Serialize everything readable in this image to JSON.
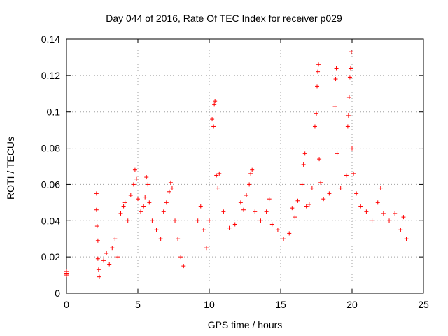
{
  "chart_data": {
    "type": "scatter",
    "title": "Day 044 of 2016, Rate Of TEC Index for receiver p029",
    "xlabel": "GPS time / hours",
    "ylabel": "ROTI / TECUs",
    "xlim": [
      0,
      25
    ],
    "ylim": [
      0,
      0.14
    ],
    "xticks": [
      0,
      5,
      10,
      15,
      20,
      25
    ],
    "yticks": [
      0,
      0.02,
      0.04,
      0.06,
      0.08,
      0.1,
      0.12,
      0.14
    ],
    "ytick_labels": [
      "0",
      "0.02",
      "0.04",
      "0.06",
      "0.08",
      "0.1",
      "0.12",
      "0.14"
    ],
    "grid": true,
    "marker": "+",
    "color": "#ff0000",
    "series": [
      {
        "points": [
          [
            0.0,
            0.01
          ],
          [
            0.0,
            0.011
          ],
          [
            0.0,
            0.012
          ],
          [
            2.1,
            0.055
          ],
          [
            2.1,
            0.046
          ],
          [
            2.15,
            0.037
          ],
          [
            2.2,
            0.029
          ],
          [
            2.2,
            0.019
          ],
          [
            2.25,
            0.013
          ],
          [
            2.3,
            0.009
          ],
          [
            2.6,
            0.018
          ],
          [
            2.8,
            0.022
          ],
          [
            3.0,
            0.016
          ],
          [
            3.2,
            0.025
          ],
          [
            3.4,
            0.03
          ],
          [
            3.6,
            0.02
          ],
          [
            3.8,
            0.044
          ],
          [
            4.0,
            0.048
          ],
          [
            4.1,
            0.05
          ],
          [
            4.3,
            0.04
          ],
          [
            4.5,
            0.054
          ],
          [
            4.7,
            0.06
          ],
          [
            4.8,
            0.068
          ],
          [
            4.9,
            0.063
          ],
          [
            5.0,
            0.052
          ],
          [
            5.2,
            0.045
          ],
          [
            5.4,
            0.048
          ],
          [
            5.5,
            0.053
          ],
          [
            5.6,
            0.064
          ],
          [
            5.7,
            0.06
          ],
          [
            5.8,
            0.05
          ],
          [
            6.0,
            0.04
          ],
          [
            6.3,
            0.035
          ],
          [
            6.6,
            0.03
          ],
          [
            6.8,
            0.045
          ],
          [
            7.0,
            0.05
          ],
          [
            7.2,
            0.056
          ],
          [
            7.3,
            0.061
          ],
          [
            7.4,
            0.058
          ],
          [
            7.6,
            0.04
          ],
          [
            7.8,
            0.03
          ],
          [
            8.0,
            0.02
          ],
          [
            8.2,
            0.015
          ],
          [
            9.2,
            0.04
          ],
          [
            9.4,
            0.048
          ],
          [
            9.6,
            0.035
          ],
          [
            9.8,
            0.025
          ],
          [
            10.0,
            0.04
          ],
          [
            10.2,
            0.096
          ],
          [
            10.3,
            0.092
          ],
          [
            10.35,
            0.104
          ],
          [
            10.4,
            0.106
          ],
          [
            10.5,
            0.065
          ],
          [
            10.6,
            0.058
          ],
          [
            10.7,
            0.066
          ],
          [
            11.0,
            0.045
          ],
          [
            11.4,
            0.036
          ],
          [
            11.8,
            0.038
          ],
          [
            12.2,
            0.05
          ],
          [
            12.4,
            0.046
          ],
          [
            12.6,
            0.054
          ],
          [
            12.8,
            0.06
          ],
          [
            12.9,
            0.066
          ],
          [
            13.0,
            0.068
          ],
          [
            13.2,
            0.045
          ],
          [
            13.6,
            0.04
          ],
          [
            14.0,
            0.045
          ],
          [
            14.2,
            0.052
          ],
          [
            14.4,
            0.038
          ],
          [
            14.8,
            0.035
          ],
          [
            15.2,
            0.03
          ],
          [
            15.6,
            0.033
          ],
          [
            15.8,
            0.047
          ],
          [
            16.0,
            0.042
          ],
          [
            16.2,
            0.051
          ],
          [
            16.5,
            0.06
          ],
          [
            16.6,
            0.071
          ],
          [
            16.7,
            0.077
          ],
          [
            16.8,
            0.048
          ],
          [
            17.0,
            0.049
          ],
          [
            17.2,
            0.058
          ],
          [
            17.4,
            0.092
          ],
          [
            17.5,
            0.099
          ],
          [
            17.55,
            0.114
          ],
          [
            17.6,
            0.122
          ],
          [
            17.65,
            0.126
          ],
          [
            17.7,
            0.074
          ],
          [
            17.8,
            0.061
          ],
          [
            18.0,
            0.052
          ],
          [
            18.4,
            0.055
          ],
          [
            18.8,
            0.103
          ],
          [
            18.85,
            0.118
          ],
          [
            18.9,
            0.124
          ],
          [
            18.95,
            0.077
          ],
          [
            19.2,
            0.058
          ],
          [
            19.6,
            0.065
          ],
          [
            19.7,
            0.092
          ],
          [
            19.75,
            0.098
          ],
          [
            19.8,
            0.108
          ],
          [
            19.85,
            0.119
          ],
          [
            19.9,
            0.124
          ],
          [
            19.95,
            0.133
          ],
          [
            20.0,
            0.08
          ],
          [
            20.1,
            0.066
          ],
          [
            20.3,
            0.055
          ],
          [
            20.6,
            0.048
          ],
          [
            21.0,
            0.045
          ],
          [
            21.4,
            0.04
          ],
          [
            21.8,
            0.05
          ],
          [
            22.0,
            0.058
          ],
          [
            22.2,
            0.044
          ],
          [
            22.6,
            0.04
          ],
          [
            23.0,
            0.044
          ],
          [
            23.4,
            0.035
          ],
          [
            23.6,
            0.042
          ],
          [
            23.8,
            0.03
          ]
        ]
      }
    ]
  }
}
